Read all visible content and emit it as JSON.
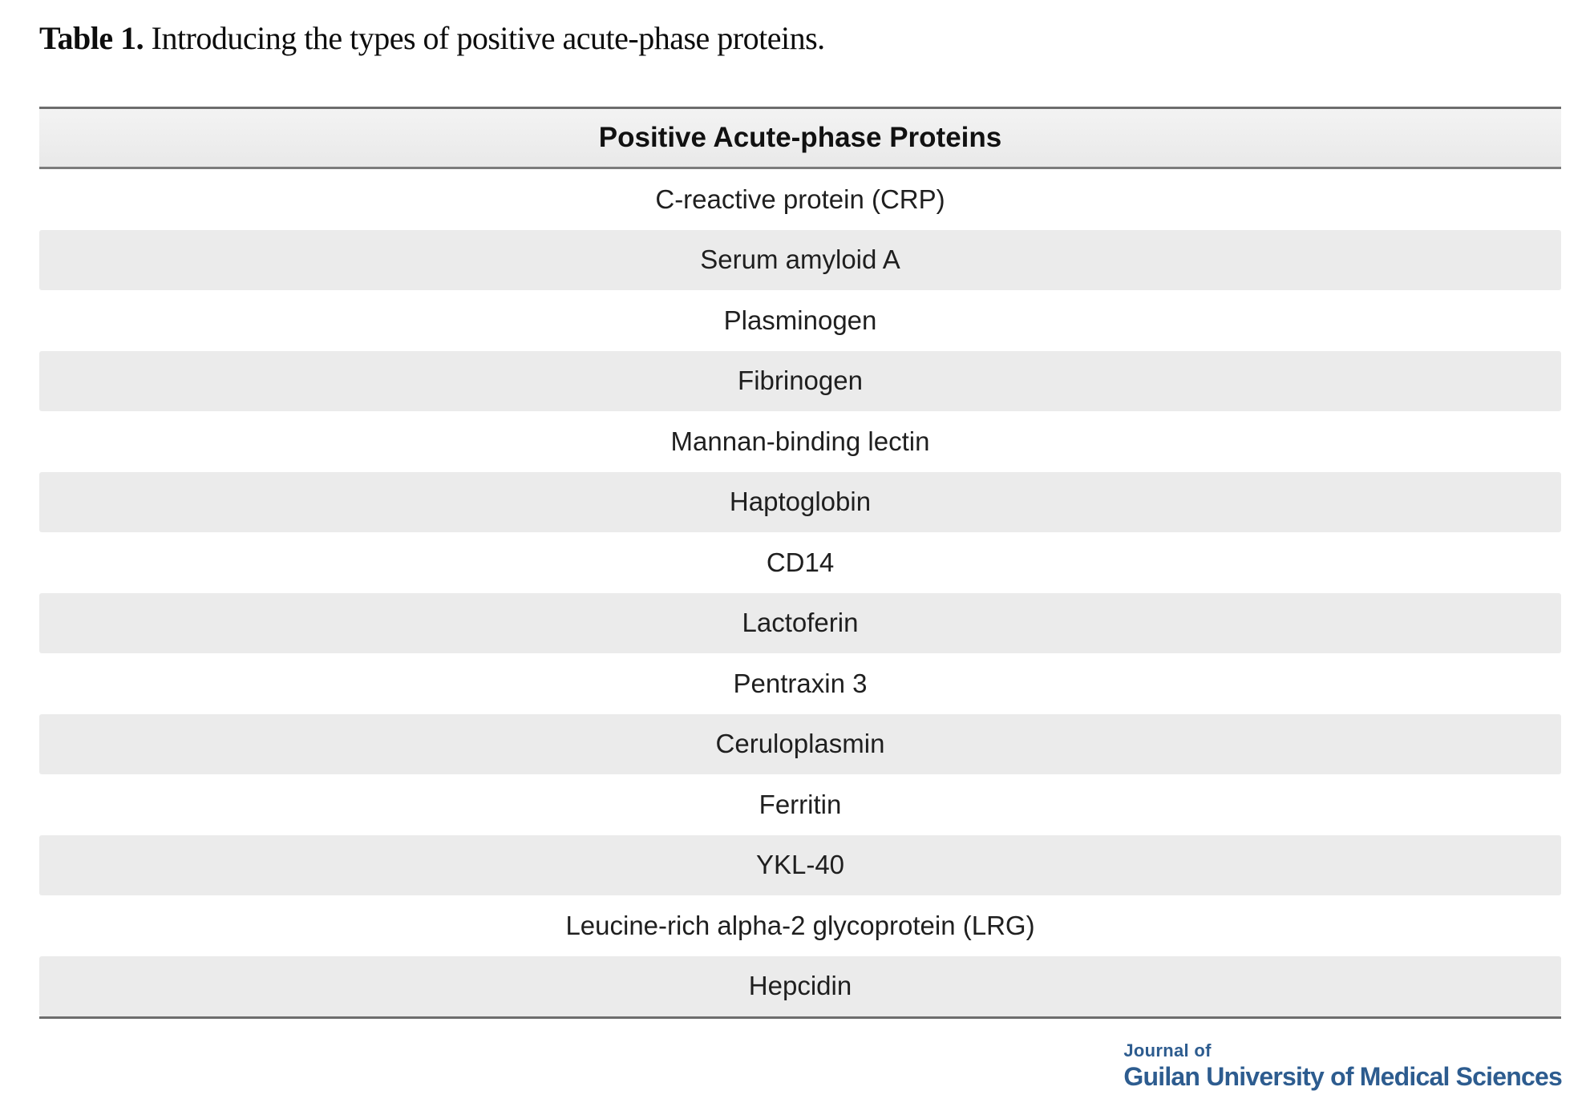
{
  "caption": {
    "label": "Table 1.",
    "text": " Introducing the types of positive acute-phase proteins."
  },
  "table": {
    "header": "Positive Acute-phase Proteins",
    "rows": [
      "C-reactive protein (CRP)",
      "Serum amyloid A",
      "Plasminogen",
      "Fibrinogen",
      "Mannan-binding lectin",
      "Haptoglobin",
      "CD14",
      "Lactoferin",
      "Pentraxin 3",
      "Ceruloplasmin",
      "Ferritin",
      "YKL-40",
      "Leucine-rich alpha-2 glycoprotein (LRG)",
      "Hepcidin"
    ]
  },
  "journal_logo": {
    "line1": "Journal of",
    "line2": "Guilan University of Medical Sciences",
    "color": "#2d5c8f"
  },
  "colors": {
    "row_alt_bg": "#ebebeb",
    "header_bg": "#ededed",
    "border_dark": "#6d6d6d",
    "text": "#1f1f1f"
  }
}
